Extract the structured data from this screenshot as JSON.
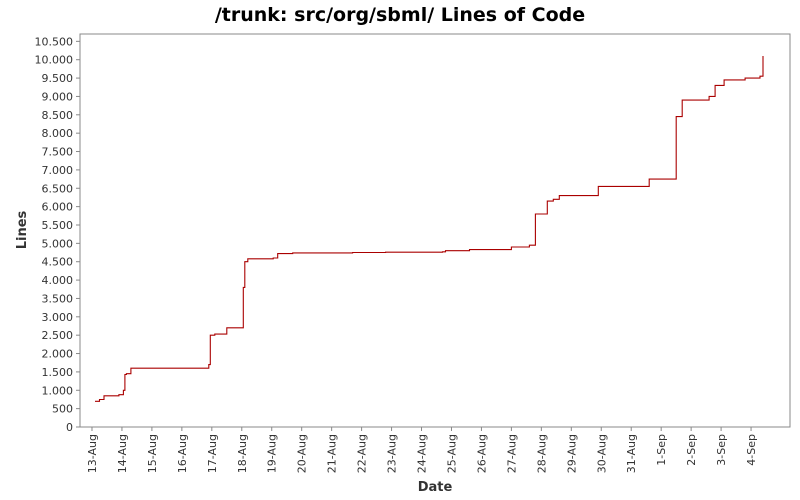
{
  "chart_data": {
    "type": "line",
    "title": "/trunk: src/org/sbml/ Lines of Code",
    "xlabel": "Date",
    "ylabel": "Lines",
    "ylim": [
      0,
      10700
    ],
    "y_ticks": [
      0,
      500,
      1000,
      1500,
      2000,
      2500,
      3000,
      3500,
      4000,
      4500,
      5000,
      5500,
      6000,
      6500,
      7000,
      7500,
      8000,
      8500,
      9000,
      9500,
      10000,
      10500
    ],
    "y_tick_labels": [
      "0",
      "500",
      "1.000",
      "1.500",
      "2.000",
      "2.500",
      "3.000",
      "3.500",
      "4.000",
      "4.500",
      "5.000",
      "5.500",
      "6.000",
      "6.500",
      "7.000",
      "7.500",
      "8.000",
      "8.500",
      "9.000",
      "9.500",
      "10.000",
      "10.500"
    ],
    "x_ticks": [
      "13-Aug",
      "14-Aug",
      "15-Aug",
      "16-Aug",
      "17-Aug",
      "18-Aug",
      "19-Aug",
      "20-Aug",
      "21-Aug",
      "22-Aug",
      "23-Aug",
      "24-Aug",
      "25-Aug",
      "26-Aug",
      "27-Aug",
      "28-Aug",
      "29-Aug",
      "30-Aug",
      "31-Aug",
      "1-Sep",
      "2-Sep",
      "3-Sep",
      "4-Sep"
    ],
    "xlim": [
      -0.4,
      23.3
    ],
    "step": true,
    "grid": false,
    "series_color": "#aa0000",
    "x": [
      0.1,
      0.25,
      0.4,
      0.9,
      1.05,
      1.1,
      1.15,
      1.3,
      3.8,
      3.9,
      3.95,
      4.1,
      4.5,
      4.55,
      4.5,
      5.05,
      5.1,
      5.2,
      6.05,
      6.2,
      6.5,
      6.7,
      8.7,
      9.5,
      9.8,
      10.5,
      11.7,
      11.8,
      12.6,
      14.0,
      14.6,
      14.8,
      15.1,
      15.2,
      15.4,
      15.6,
      16.5,
      16.9,
      17.5,
      18.6,
      19.5,
      19.7,
      20.6,
      20.8,
      21.1,
      21.8,
      22.0,
      22.3,
      22.4
    ],
    "y": [
      700,
      750,
      850,
      880,
      1000,
      1430,
      1450,
      1600,
      1600,
      1700,
      2500,
      2530,
      2700,
      2700,
      2700,
      3800,
      4500,
      4580,
      4600,
      4720,
      4720,
      4740,
      4750,
      4750,
      4760,
      4760,
      4770,
      4800,
      4830,
      4900,
      4950,
      5800,
      5800,
      6150,
      6200,
      6300,
      6300,
      6550,
      6550,
      6750,
      8450,
      8900,
      9000,
      9300,
      9450,
      9500,
      9500,
      9550,
      10100
    ]
  }
}
